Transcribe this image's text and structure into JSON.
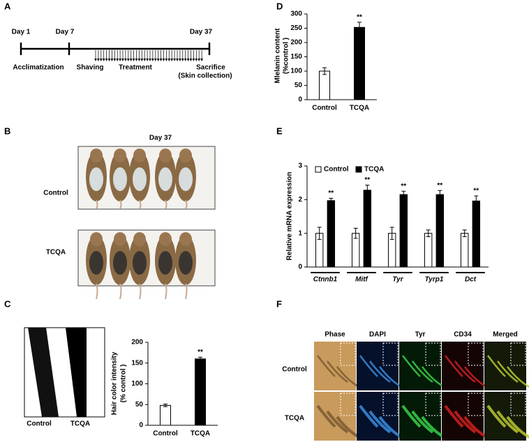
{
  "panel_a": {
    "label": "A",
    "days": [
      "Day 1",
      "Day 7",
      "Day 37"
    ],
    "stages": [
      "Acclimatization",
      "Shaving",
      "Treatment",
      "Sacrifice",
      "(Skin collection)"
    ]
  },
  "panel_b": {
    "label": "B",
    "title": "Day 37",
    "rows": [
      "Control",
      "TCQA"
    ]
  },
  "panel_c": {
    "label": "C",
    "image_labels": [
      "Control",
      "TCQA"
    ]
  },
  "panel_d": {
    "label": "D"
  },
  "panel_e": {
    "label": "E"
  },
  "panel_f": {
    "label": "F",
    "columns": [
      "Phase",
      "DAPI",
      "Tyr",
      "CD34",
      "Merged"
    ],
    "rows": [
      "Control",
      "TCQA"
    ]
  },
  "chart_data": [
    {
      "type": "bar",
      "ylabel": [
        "Mlelanin content",
        "(%control )"
      ],
      "categories": [
        "Control",
        "TCQA"
      ],
      "values": [
        100,
        253
      ],
      "errors": [
        12,
        18
      ],
      "significance": [
        null,
        "**"
      ],
      "colors": [
        "#ffffff",
        "#000000"
      ],
      "ylim": [
        0,
        300
      ],
      "yticks": [
        0,
        50,
        100,
        150,
        200,
        250,
        300
      ]
    },
    {
      "type": "bar",
      "ylabel": [
        "Relative  mRNA expression"
      ],
      "categories": [
        "Ctnnb1",
        "Mitf",
        "Tyr",
        "Tyrp1",
        "Dct"
      ],
      "series": [
        {
          "name": "Control",
          "color": "#ffffff",
          "values": [
            1,
            1,
            1,
            1,
            1
          ],
          "errors": [
            0.18,
            0.15,
            0.18,
            0.1,
            0.1
          ],
          "significance": [
            null,
            null,
            null,
            null,
            null
          ]
        },
        {
          "name": "TCQA",
          "color": "#000000",
          "values": [
            1.97,
            2.28,
            2.15,
            2.15,
            1.96
          ],
          "errors": [
            0.07,
            0.15,
            0.1,
            0.12,
            0.15
          ],
          "significance": [
            "**",
            "**",
            "**",
            "**",
            "**"
          ]
        }
      ],
      "ylim": [
        0,
        3
      ],
      "yticks": [
        0,
        1,
        2,
        3
      ],
      "legend": "top-left"
    },
    {
      "type": "bar",
      "ylabel": [
        "Hair color intensity",
        "(% control )"
      ],
      "categories": [
        "Control",
        "TCQA"
      ],
      "values": [
        48,
        160
      ],
      "errors": [
        3,
        4
      ],
      "significance": [
        null,
        "**"
      ],
      "colors": [
        "#ffffff",
        "#000000"
      ],
      "ylim": [
        0,
        200
      ],
      "yticks": [
        0,
        50,
        100,
        150,
        200
      ]
    }
  ]
}
